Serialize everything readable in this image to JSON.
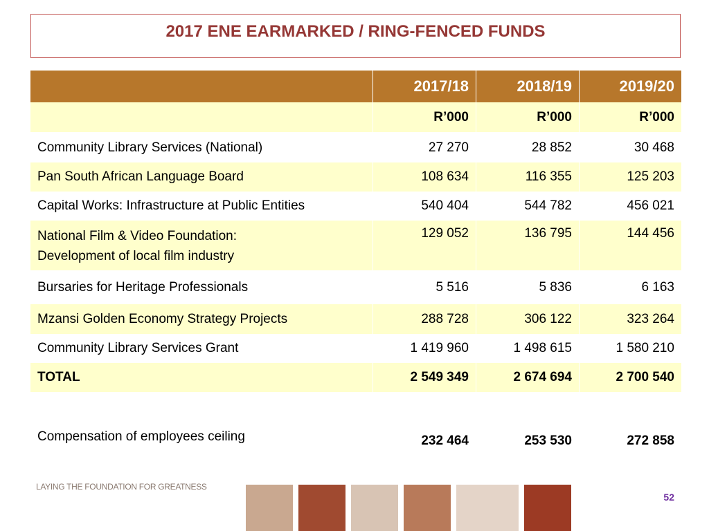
{
  "header": {
    "title": "2017 ENE EARMARKED / RING-FENCED FUNDS"
  },
  "table": {
    "columns": [
      "2017/18",
      "2018/19",
      "2019/20"
    ],
    "units": [
      "R’000",
      "R’000",
      "R’000"
    ],
    "rows": [
      {
        "label": [
          "Community Library Services (National)"
        ],
        "values": [
          "27 270",
          "28 852",
          "30 468"
        ]
      },
      {
        "label": [
          "Pan South African Language Board"
        ],
        "values": [
          "108 634",
          "116 355",
          "125 203"
        ]
      },
      {
        "label": [
          "Capital Works: Infrastructure at Public Entities"
        ],
        "values": [
          "540 404",
          "544 782",
          "456 021"
        ]
      },
      {
        "label": [
          "National Film & Video Foundation:",
          "Development of local film industry"
        ],
        "values": [
          "129 052",
          "136 795",
          "144 456"
        ]
      },
      {
        "label": [
          "Bursaries for Heritage Professionals"
        ],
        "values": [
          "5 516",
          "5 836",
          "6 163"
        ]
      },
      {
        "label": [
          "Mzansi Golden Economy Strategy Projects"
        ],
        "values": [
          "288 728",
          "306 122",
          "323 264"
        ]
      },
      {
        "label": [
          "Community Library Services Grant"
        ],
        "values": [
          "1 419 960",
          "1 498 615",
          "1 580 210"
        ]
      }
    ],
    "total": {
      "label": "TOTAL",
      "values": [
        "2 549 349",
        "2 674 694",
        "2 700 540"
      ]
    },
    "ceiling": {
      "label": "Compensation of employees ceiling",
      "values": [
        "232 464",
        "253 530",
        "272 858"
      ]
    }
  },
  "footer": {
    "tagline": "LAYING THE FOUNDATION FOR GREATNESS",
    "page_number": "52"
  }
}
